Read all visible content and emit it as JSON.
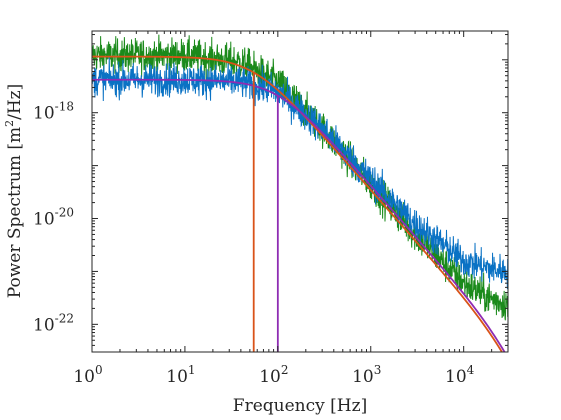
{
  "chart_data": {
    "type": "line",
    "title": "",
    "xlabel": "Frequency [Hz]",
    "ylabel": "Power Spectrum [m²/Hz]",
    "xscale": "log",
    "yscale": "log",
    "xlim": [
      1,
      30000
    ],
    "ylim": [
      3e-23,
      3.5e-17
    ],
    "grid": false,
    "legend": "none",
    "xticks": [
      {
        "value": 1,
        "base": "10",
        "exp": "0"
      },
      {
        "value": 10,
        "base": "10",
        "exp": "1"
      },
      {
        "value": 100,
        "base": "10",
        "exp": "2"
      },
      {
        "value": 1000,
        "base": "10",
        "exp": "3"
      },
      {
        "value": 10000,
        "base": "10",
        "exp": "4"
      }
    ],
    "yticks": [
      {
        "value": 1e-22,
        "base": "10",
        "exp": "-22"
      },
      {
        "value": 1e-20,
        "base": "10",
        "exp": "-20"
      },
      {
        "value": 1e-18,
        "base": "10",
        "exp": "-18"
      }
    ],
    "series": [
      {
        "kind": "measured",
        "color": "#1b8a1b",
        "noise": 0.42,
        "x": [
          1,
          10,
          40,
          100,
          300,
          1000,
          3000,
          10000,
          20000,
          30000
        ],
        "y": [
          1.2e-17,
          1.2e-17,
          9e-18,
          3.8e-18,
          5e-19,
          4.5e-20,
          5e-21,
          6e-22,
          3e-22,
          2.4e-22
        ]
      },
      {
        "kind": "measured",
        "color": "#0a72c4",
        "noise": 0.4,
        "x": [
          1,
          10,
          40,
          100,
          300,
          1000,
          3000,
          10000,
          20000,
          30000
        ],
        "y": [
          4.2e-18,
          4.2e-18,
          3.8e-18,
          2.5e-18,
          5e-19,
          5.5e-20,
          8e-21,
          1.6e-21,
          1.1e-21,
          1e-21
        ]
      },
      {
        "kind": "fit",
        "color": "#d95319",
        "plateau": 1.15e-17,
        "corner_hz": 55,
        "cut_hz": 30000
      },
      {
        "kind": "fit",
        "color": "#8e2cb3",
        "plateau": 4.2e-18,
        "corner_hz": 100,
        "cut_hz": 30000
      }
    ],
    "markers": [
      {
        "x": 55,
        "color": "#d95319"
      },
      {
        "x": 100,
        "color": "#8e2cb3"
      }
    ]
  },
  "axes": {
    "ylabel_main": "Power Spectrum [m",
    "ylabel_sup": "2",
    "ylabel_tail": "/Hz]"
  }
}
